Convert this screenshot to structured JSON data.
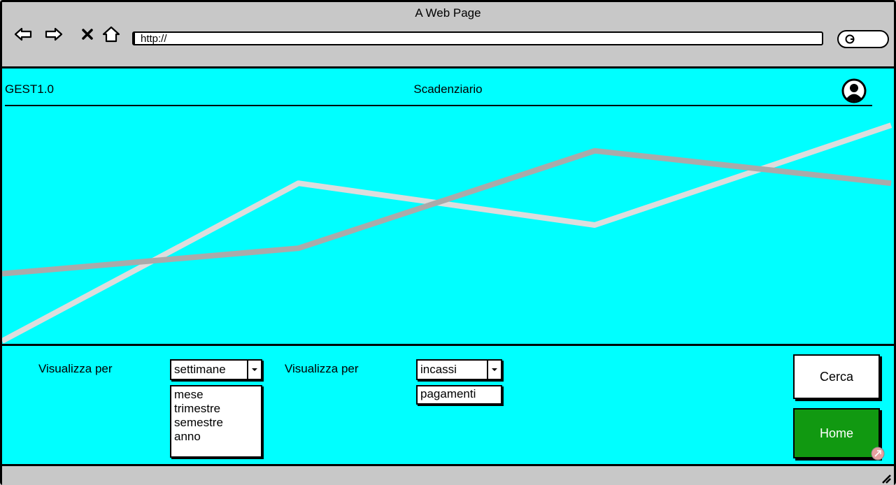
{
  "browser": {
    "title": "A Web Page",
    "url": "http://",
    "icons": [
      "back-arrow-icon",
      "forward-arrow-icon",
      "close-icon",
      "home-icon",
      "search-icon"
    ]
  },
  "header": {
    "brand": "GEST1.0",
    "title": "Scadenziario",
    "avatar_icon": "user-avatar-icon"
  },
  "chart_data": {
    "type": "line",
    "x": [
      0,
      1,
      2,
      3
    ],
    "xlim": [
      0,
      3
    ],
    "ylim": [
      0,
      1
    ],
    "grid": false,
    "series": [
      {
        "color": "#dddddd",
        "values": [
          0.0,
          0.68,
          0.5,
          0.93
        ]
      },
      {
        "color": "#aaaaaa",
        "values": [
          0.29,
          0.4,
          0.82,
          0.68
        ]
      }
    ]
  },
  "filters": {
    "period": {
      "label": "Visualizza per",
      "selected": "settimane",
      "options": [
        "mese",
        "trimestre",
        "semestre",
        "anno"
      ]
    },
    "type": {
      "label": "Visualizza per",
      "selected": "incassi",
      "options": [
        "pagamenti"
      ]
    }
  },
  "actions": {
    "search_label": "Cerca",
    "home_label": "Home",
    "home_color": "#119911"
  },
  "colors": {
    "background": "#00ffff",
    "chrome": "#c8c8c8"
  }
}
